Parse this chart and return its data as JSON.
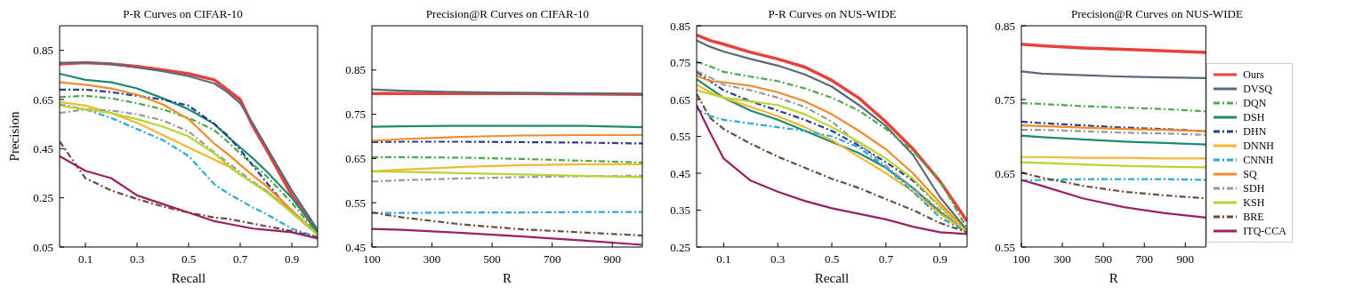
{
  "chart_data": [
    {
      "type": "line",
      "title": "P-R Curves on CIFAR-10",
      "xlabel": "Recall",
      "ylabel": "Precision",
      "xlim": [
        0,
        1
      ],
      "ylim": [
        0.05,
        0.95
      ],
      "xticks": [
        0.1,
        0.3,
        0.5,
        0.7,
        0.9
      ],
      "yticks": [
        0.05,
        0.25,
        0.45,
        0.65,
        0.85
      ],
      "grid": false,
      "marker": "none",
      "x": [
        0,
        0.1,
        0.2,
        0.3,
        0.4,
        0.5,
        0.6,
        0.65,
        0.7,
        0.75,
        0.8,
        0.9,
        1
      ],
      "series": [
        {
          "color": "#e8403a",
          "line_style": "solid",
          "values": [
            0.795,
            0.8,
            0.795,
            0.785,
            0.77,
            0.755,
            0.73,
            0.69,
            0.65,
            0.54,
            0.45,
            0.26,
            0.11
          ]
        },
        {
          "color": "#5a6a78",
          "line_style": "solid",
          "values": [
            0.8,
            0.8,
            0.795,
            0.78,
            0.765,
            0.745,
            0.715,
            0.68,
            0.635,
            0.55,
            0.46,
            0.28,
            0.12
          ]
        },
        {
          "color": "#4aaa48",
          "line_style": "dashed",
          "values": [
            0.66,
            0.665,
            0.655,
            0.635,
            0.61,
            0.575,
            0.525,
            0.48,
            0.43,
            0.385,
            0.34,
            0.23,
            0.1
          ]
        },
        {
          "color": "#1f8a70",
          "line_style": "solid",
          "values": [
            0.755,
            0.73,
            0.72,
            0.695,
            0.655,
            0.61,
            0.55,
            0.5,
            0.455,
            0.41,
            0.36,
            0.25,
            0.11
          ]
        },
        {
          "color": "#2a3d8f",
          "line_style": "dashed",
          "values": [
            0.69,
            0.69,
            0.68,
            0.665,
            0.65,
            0.625,
            0.55,
            0.505,
            0.445,
            0.38,
            0.315,
            0.19,
            0.1
          ]
        },
        {
          "color": "#f7b733",
          "line_style": "solid",
          "values": [
            0.64,
            0.625,
            0.595,
            0.555,
            0.505,
            0.455,
            0.405,
            0.38,
            0.345,
            0.31,
            0.28,
            0.195,
            0.1
          ]
        },
        {
          "color": "#29a8e0",
          "line_style": "dashed",
          "values": [
            0.63,
            0.61,
            0.575,
            0.53,
            0.485,
            0.42,
            0.305,
            0.27,
            0.24,
            0.21,
            0.185,
            0.125,
            0.09
          ]
        },
        {
          "color": "#f28a2e",
          "line_style": "solid",
          "values": [
            0.72,
            0.71,
            0.695,
            0.67,
            0.63,
            0.57,
            0.47,
            0.43,
            0.385,
            0.34,
            0.3,
            0.2,
            0.1
          ]
        },
        {
          "color": "#999999",
          "line_style": "dashed",
          "values": [
            0.595,
            0.61,
            0.605,
            0.59,
            0.565,
            0.52,
            0.435,
            0.395,
            0.355,
            0.315,
            0.28,
            0.19,
            0.1
          ]
        },
        {
          "color": "#b8d433",
          "line_style": "solid",
          "values": [
            0.625,
            0.61,
            0.595,
            0.57,
            0.54,
            0.5,
            0.43,
            0.385,
            0.345,
            0.31,
            0.275,
            0.19,
            0.1
          ]
        },
        {
          "color": "#6b4c3b",
          "line_style": "dashed",
          "values": [
            0.48,
            0.33,
            0.28,
            0.245,
            0.215,
            0.19,
            0.17,
            0.165,
            0.155,
            0.145,
            0.135,
            0.115,
            0.09
          ]
        },
        {
          "color": "#9b2060",
          "line_style": "solid",
          "values": [
            0.42,
            0.36,
            0.33,
            0.26,
            0.225,
            0.19,
            0.155,
            0.145,
            0.135,
            0.125,
            0.12,
            0.11,
            0.085
          ]
        }
      ]
    },
    {
      "type": "line",
      "title": "Precision@R Curves on CIFAR-10",
      "xlabel": "R",
      "xlim": [
        100,
        1000
      ],
      "ylim": [
        0.45,
        0.95
      ],
      "xticks": [
        100,
        300,
        500,
        700,
        900
      ],
      "yticks": [
        0.45,
        0.55,
        0.65,
        0.75,
        0.85
      ],
      "grid": false,
      "marker": "none",
      "x": [
        100,
        200,
        400,
        600,
        800,
        1000
      ],
      "series": [
        {
          "color": "#e8403a",
          "line_style": "solid",
          "values": [
            0.797,
            0.797,
            0.797,
            0.797,
            0.796,
            0.795
          ]
        },
        {
          "color": "#5a6a78",
          "line_style": "solid",
          "values": [
            0.806,
            0.803,
            0.8,
            0.798,
            0.797,
            0.796
          ]
        },
        {
          "color": "#4aaa48",
          "line_style": "dashed",
          "values": [
            0.653,
            0.653,
            0.652,
            0.649,
            0.645,
            0.641
          ]
        },
        {
          "color": "#1f8a70",
          "line_style": "solid",
          "values": [
            0.722,
            0.723,
            0.724,
            0.724,
            0.724,
            0.721
          ]
        },
        {
          "color": "#2a3d8f",
          "line_style": "dashed",
          "values": [
            0.687,
            0.688,
            0.688,
            0.687,
            0.686,
            0.684
          ]
        },
        {
          "color": "#f7b733",
          "line_style": "solid",
          "values": [
            0.621,
            0.625,
            0.631,
            0.635,
            0.637,
            0.637
          ]
        },
        {
          "color": "#29a8e0",
          "line_style": "dashed",
          "values": [
            0.527,
            0.527,
            0.528,
            0.528,
            0.529,
            0.529
          ]
        },
        {
          "color": "#f28a2e",
          "line_style": "solid",
          "values": [
            0.69,
            0.694,
            0.699,
            0.702,
            0.703,
            0.703
          ]
        },
        {
          "color": "#999999",
          "line_style": "dashed",
          "values": [
            0.598,
            0.601,
            0.605,
            0.608,
            0.61,
            0.611
          ]
        },
        {
          "color": "#b8d433",
          "line_style": "solid",
          "values": [
            0.621,
            0.62,
            0.617,
            0.614,
            0.611,
            0.608
          ]
        },
        {
          "color": "#6b4c3b",
          "line_style": "dashed",
          "values": [
            0.528,
            0.517,
            0.501,
            0.49,
            0.483,
            0.476
          ]
        },
        {
          "color": "#9b2060",
          "line_style": "solid",
          "values": [
            0.491,
            0.489,
            0.482,
            0.474,
            0.465,
            0.455
          ]
        }
      ]
    },
    {
      "type": "line",
      "title": "P-R Curves on NUS-WIDE",
      "xlabel": "Recall",
      "xlim": [
        0,
        1
      ],
      "ylim": [
        0.25,
        0.85
      ],
      "xticks": [
        0.1,
        0.3,
        0.5,
        0.7,
        0.9
      ],
      "yticks": [
        0.25,
        0.35,
        0.45,
        0.55,
        0.65,
        0.75,
        0.85
      ],
      "grid": false,
      "marker": "none",
      "x": [
        0,
        0.05,
        0.1,
        0.2,
        0.3,
        0.4,
        0.5,
        0.6,
        0.7,
        0.8,
        0.9,
        1
      ],
      "series": [
        {
          "color": "#e8403a",
          "line_style": "solid",
          "values": [
            0.825,
            0.81,
            0.8,
            0.778,
            0.76,
            0.738,
            0.702,
            0.654,
            0.589,
            0.516,
            0.428,
            0.32
          ]
        },
        {
          "color": "#5a6a78",
          "line_style": "solid",
          "values": [
            0.81,
            0.793,
            0.78,
            0.76,
            0.742,
            0.718,
            0.685,
            0.635,
            0.578,
            0.5,
            0.385,
            0.295
          ]
        },
        {
          "color": "#4aaa48",
          "line_style": "dashed",
          "values": [
            0.752,
            0.74,
            0.725,
            0.712,
            0.7,
            0.68,
            0.655,
            0.62,
            0.57,
            0.51,
            0.43,
            0.3
          ]
        },
        {
          "color": "#1f8a70",
          "line_style": "solid",
          "values": [
            0.705,
            0.68,
            0.655,
            0.62,
            0.595,
            0.565,
            0.535,
            0.505,
            0.465,
            0.41,
            0.345,
            0.29
          ]
        },
        {
          "color": "#2a3d8f",
          "line_style": "dashed",
          "values": [
            0.725,
            0.7,
            0.675,
            0.645,
            0.62,
            0.595,
            0.565,
            0.525,
            0.48,
            0.43,
            0.36,
            0.29
          ]
        },
        {
          "color": "#f7b733",
          "line_style": "solid",
          "values": [
            0.69,
            0.67,
            0.655,
            0.63,
            0.605,
            0.575,
            0.54,
            0.495,
            0.45,
            0.4,
            0.34,
            0.29
          ]
        },
        {
          "color": "#29a8e0",
          "line_style": "dashed",
          "values": [
            0.625,
            0.605,
            0.595,
            0.585,
            0.575,
            0.565,
            0.55,
            0.52,
            0.465,
            0.4,
            0.33,
            0.29
          ]
        },
        {
          "color": "#f28a2e",
          "line_style": "solid",
          "values": [
            0.715,
            0.7,
            0.697,
            0.687,
            0.67,
            0.645,
            0.61,
            0.565,
            0.515,
            0.45,
            0.37,
            0.29
          ]
        },
        {
          "color": "#999999",
          "line_style": "dashed",
          "values": [
            0.727,
            0.71,
            0.69,
            0.675,
            0.655,
            0.63,
            0.59,
            0.53,
            0.47,
            0.41,
            0.35,
            0.29
          ]
        },
        {
          "color": "#b8d433",
          "line_style": "solid",
          "values": [
            0.675,
            0.665,
            0.655,
            0.645,
            0.635,
            0.61,
            0.575,
            0.535,
            0.49,
            0.435,
            0.36,
            0.29
          ]
        },
        {
          "color": "#6b4c3b",
          "line_style": "dashed",
          "values": [
            0.665,
            0.6,
            0.57,
            0.53,
            0.495,
            0.465,
            0.435,
            0.41,
            0.38,
            0.35,
            0.315,
            0.29
          ]
        },
        {
          "color": "#9b2060",
          "line_style": "solid",
          "values": [
            0.635,
            0.56,
            0.49,
            0.43,
            0.4,
            0.375,
            0.355,
            0.34,
            0.325,
            0.305,
            0.29,
            0.285
          ]
        }
      ]
    },
    {
      "type": "line",
      "title": "Precision@R Curves on NUS-WIDE",
      "xlabel": "R",
      "xlim": [
        100,
        1000
      ],
      "ylim": [
        0.55,
        0.85
      ],
      "xticks": [
        100,
        300,
        500,
        700,
        900
      ],
      "yticks": [
        0.55,
        0.65,
        0.75,
        0.85
      ],
      "grid": false,
      "marker": "none",
      "legend": "right",
      "x": [
        100,
        200,
        400,
        600,
        800,
        1000
      ],
      "series": [
        {
          "name": "Ours",
          "color": "#e8403a",
          "line_style": "solid",
          "values": [
            0.825,
            0.823,
            0.82,
            0.818,
            0.816,
            0.814
          ]
        },
        {
          "name": "DVSQ",
          "color": "#5a6a78",
          "line_style": "solid",
          "values": [
            0.788,
            0.785,
            0.783,
            0.781,
            0.78,
            0.779
          ]
        },
        {
          "name": "DQN",
          "color": "#4aaa48",
          "line_style": "dashed",
          "values": [
            0.745,
            0.744,
            0.741,
            0.739,
            0.737,
            0.734
          ]
        },
        {
          "name": "DSH",
          "color": "#1f8a70",
          "line_style": "solid",
          "values": [
            0.701,
            0.699,
            0.696,
            0.693,
            0.691,
            0.689
          ]
        },
        {
          "name": "DHN",
          "color": "#2a3d8f",
          "line_style": "dashed",
          "values": [
            0.72,
            0.718,
            0.715,
            0.712,
            0.71,
            0.707
          ]
        },
        {
          "name": "DNNH",
          "color": "#f7b733",
          "line_style": "solid",
          "values": [
            0.672,
            0.672,
            0.671,
            0.671,
            0.67,
            0.67
          ]
        },
        {
          "name": "CNNH",
          "color": "#29a8e0",
          "line_style": "dashed",
          "values": [
            0.64,
            0.641,
            0.642,
            0.642,
            0.642,
            0.641
          ]
        },
        {
          "name": "SQ",
          "color": "#f28a2e",
          "line_style": "solid",
          "values": [
            0.715,
            0.714,
            0.712,
            0.71,
            0.709,
            0.707
          ]
        },
        {
          "name": "SDH",
          "color": "#999999",
          "line_style": "dashed",
          "values": [
            0.709,
            0.709,
            0.707,
            0.705,
            0.704,
            0.702
          ]
        },
        {
          "name": "KSH",
          "color": "#b8d433",
          "line_style": "solid",
          "values": [
            0.665,
            0.664,
            0.662,
            0.66,
            0.659,
            0.658
          ]
        },
        {
          "name": "BRE",
          "color": "#6b4c3b",
          "line_style": "dashed",
          "values": [
            0.651,
            0.644,
            0.633,
            0.625,
            0.62,
            0.616
          ]
        },
        {
          "name": "ITQ-CCA",
          "color": "#9b2060",
          "line_style": "solid",
          "values": [
            0.641,
            0.633,
            0.616,
            0.604,
            0.596,
            0.59
          ]
        }
      ]
    }
  ]
}
